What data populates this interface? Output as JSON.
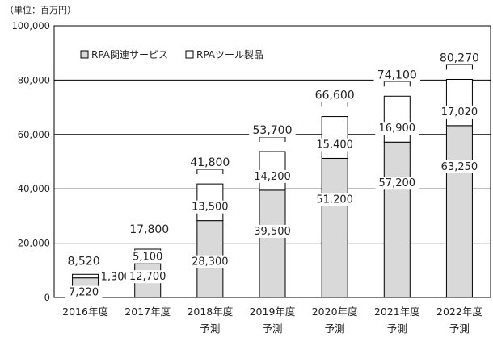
{
  "chart_data": {
    "type": "bar",
    "stacked": true,
    "unit_label": "（単位：百万円）",
    "categories": [
      {
        "line1": "2016年度",
        "line2": ""
      },
      {
        "line1": "2017年度",
        "line2": ""
      },
      {
        "line1": "2018年度",
        "line2": "予測"
      },
      {
        "line1": "2019年度",
        "line2": "予測"
      },
      {
        "line1": "2020年度",
        "line2": "予測"
      },
      {
        "line1": "2021年度",
        "line2": "予測"
      },
      {
        "line1": "2022年度",
        "line2": "予測"
      }
    ],
    "series": [
      {
        "name": "RPA関連サービス",
        "color": "#d9d9d9",
        "values": [
          7220,
          12700,
          28300,
          39500,
          51200,
          57200,
          63250
        ],
        "labels": [
          "7,220",
          "12,700",
          "28,300",
          "39,500",
          "51,200",
          "57,200",
          "63,250"
        ]
      },
      {
        "name": "RPAツール製品",
        "color": "#ffffff",
        "values": [
          1300,
          5100,
          13500,
          14200,
          15400,
          16900,
          17020
        ],
        "labels": [
          "1,300",
          "5,100",
          "13,500",
          "14,200",
          "15,400",
          "16,900",
          "17,020"
        ]
      }
    ],
    "totals": [
      8520,
      17800,
      41800,
      53700,
      66600,
      74100,
      80270
    ],
    "total_labels": [
      "8,520",
      "17,800",
      "41,800",
      "53,700",
      "66,600",
      "74,100",
      "80,270"
    ],
    "ylim": [
      0,
      100000
    ],
    "yticks": [
      0,
      20000,
      40000,
      60000,
      80000,
      100000
    ],
    "ytick_labels": [
      "0",
      "20,000",
      "40,000",
      "60,000",
      "80,000",
      "100,000"
    ],
    "grid": true,
    "legend": "top-left"
  }
}
